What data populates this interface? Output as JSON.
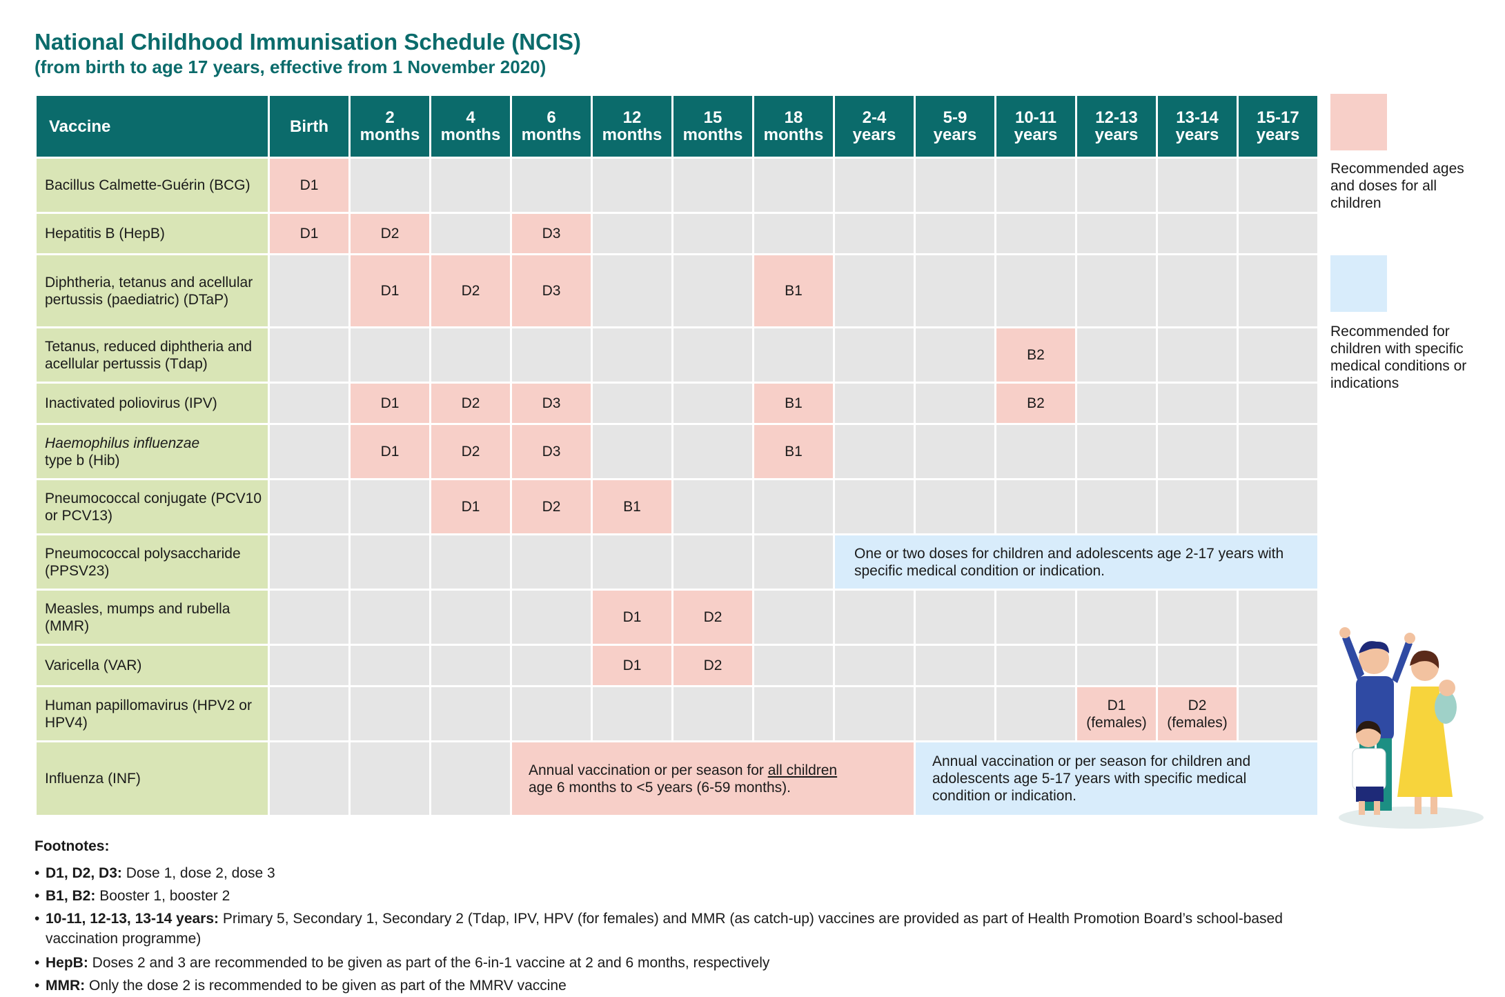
{
  "title": "National Childhood Immunisation Schedule (NCIS)",
  "subtitle": "(from birth to age 17 years, effective from 1 November 2020)",
  "table": {
    "header": {
      "vaccine": "Vaccine",
      "ages": [
        {
          "l1": "Birth",
          "l2": ""
        },
        {
          "l1": "2",
          "l2": "months"
        },
        {
          "l1": "4",
          "l2": "months"
        },
        {
          "l1": "6",
          "l2": "months"
        },
        {
          "l1": "12",
          "l2": "months"
        },
        {
          "l1": "15",
          "l2": "months"
        },
        {
          "l1": "18",
          "l2": "months"
        },
        {
          "l1": "2-4",
          "l2": "years"
        },
        {
          "l1": "5-9",
          "l2": "years"
        },
        {
          "l1": "10-11",
          "l2": "years"
        },
        {
          "l1": "12-13",
          "l2": "years"
        },
        {
          "l1": "13-14",
          "l2": "years"
        },
        {
          "l1": "15-17",
          "l2": "years"
        }
      ]
    },
    "rows": [
      {
        "name": "Bacillus Calmette-Guérin (BCG)",
        "doses": {
          "birth": "D1"
        }
      },
      {
        "name": "Hepatitis B (HepB)",
        "doses": {
          "birth": "D1",
          "m2": "D2",
          "m6": "D3"
        }
      },
      {
        "name": "Diphtheria, tetanus and acellular pertussis (paediatric) (DTaP)",
        "doses": {
          "m2": "D1",
          "m4": "D2",
          "m6": "D3",
          "m18": "B1"
        }
      },
      {
        "name": "Tetanus, reduced diphtheria and acellular pertussis (Tdap)",
        "doses": {
          "y10": "B2"
        }
      },
      {
        "name": "Inactivated poliovirus (IPV)",
        "doses": {
          "m2": "D1",
          "m4": "D2",
          "m6": "D3",
          "m18": "B1",
          "y10": "B2"
        }
      },
      {
        "name_italic": "Haemophilus influenzae",
        "name_rest": "type b (Hib)",
        "doses": {
          "m2": "D1",
          "m4": "D2",
          "m6": "D3",
          "m18": "B1"
        }
      },
      {
        "name": "Pneumococcal conjugate (PCV10 or PCV13)",
        "doses": {
          "m4": "D1",
          "m6": "D2",
          "m12": "B1"
        }
      },
      {
        "name": "Pneumococcal polysaccharide (PPSV23)",
        "note": "One or two doses for children and adolescents age 2-17 years with specific medical condition or indication."
      },
      {
        "name": "Measles, mumps and rubella (MMR)",
        "doses": {
          "m12": "D1",
          "m15": "D2"
        }
      },
      {
        "name": "Varicella (VAR)",
        "doses": {
          "m12": "D1",
          "m15": "D2"
        }
      },
      {
        "name": "Human papillomavirus (HPV2 or HPV4)",
        "doses": {
          "y12": "D1",
          "y12_sub": "(females)",
          "y13": "D2",
          "y13_sub": "(females)"
        }
      },
      {
        "name": "Influenza (INF)",
        "note_pink_a": "Annual vaccination or per season for ",
        "note_pink_u": "all children",
        "note_pink_b": "age 6 months to <5 years (6-59 months).",
        "note_blue": "Annual vaccination or per season for children and adolescents age 5-17 years with specific medical condition or indication."
      }
    ]
  },
  "legend": {
    "pink_label": "Recommended ages and doses for all children",
    "blue_label": "Recommended for children with specific medical conditions or indications",
    "pink_color": "#f7cfc8",
    "blue_color": "#d8ecfb"
  },
  "footnotes": {
    "heading": "Footnotes:",
    "items": [
      {
        "term": "D1, D2, D3:",
        "text": " Dose 1, dose 2, dose 3"
      },
      {
        "term": "B1, B2:",
        "text": " Booster 1, booster 2"
      },
      {
        "term": "10-11, 12-13, 13-14 years:",
        "text": " Primary 5, Secondary 1, Secondary 2 (Tdap, IPV, HPV (for females) and MMR (as catch-up) vaccines are provided as part of Health Promotion Board’s school-based vaccination programme)"
      },
      {
        "term": "HepB:",
        "text": " Doses 2 and 3 are recommended to be given as part of the 6-in-1 vaccine at 2 and 6 months, respectively"
      },
      {
        "term": "MMR:",
        "text": " Only the dose 2 is recommended to be given as part of the MMRV vaccine"
      }
    ]
  },
  "colors": {
    "header": "#0b6b6b",
    "vaccine_col": "#d9e5b6",
    "empty_cell": "#e5e5e5"
  }
}
